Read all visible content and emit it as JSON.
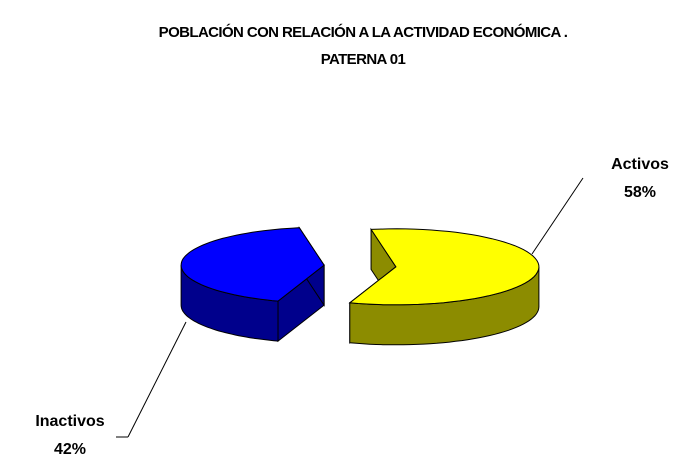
{
  "chart_data": {
    "type": "pie3d",
    "title": [
      "POBLACIÓN CON RELACIÓN A LA ACTIVIDAD ECONÓMICA .",
      "PATERNA 01"
    ],
    "categories": [
      "Activos",
      "Inactivos"
    ],
    "values": [
      58,
      42
    ],
    "value_labels": [
      "58%",
      "42%"
    ],
    "colors": [
      "#ffff00",
      "#0000ff"
    ]
  }
}
